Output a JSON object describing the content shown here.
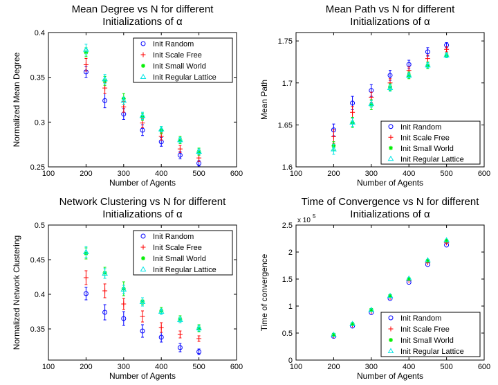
{
  "colors": {
    "random": "#0000ff",
    "scale_free": "#ff0000",
    "small_world": "#00ee00",
    "regular_lattice": "#00e5e5"
  },
  "chart_data": [
    {
      "type": "scatter",
      "title_lines": [
        "Mean Degree vs N for different",
        "Initializations of α"
      ],
      "xlabel": "Number of Agents",
      "ylabel": "Normalized Mean Degree",
      "xlim": [
        100,
        600
      ],
      "ylim": [
        0.25,
        0.4
      ],
      "xticks": [
        "100",
        "200",
        "300",
        "400",
        "500",
        "600"
      ],
      "yticks": [
        "0.25",
        "0.3",
        "0.35",
        "0.4"
      ],
      "legend_position": "top-right",
      "x": [
        200,
        250,
        300,
        350,
        400,
        450,
        500
      ],
      "series": [
        {
          "name": "Init Random",
          "marker": "circle",
          "values": [
            0.356,
            0.324,
            0.309,
            0.291,
            0.278,
            0.263,
            0.254
          ],
          "err": [
            0.006,
            0.008,
            0.006,
            0.006,
            0.005,
            0.004,
            0.003
          ]
        },
        {
          "name": "Init Scale Free",
          "marker": "plus",
          "values": [
            0.364,
            0.338,
            0.317,
            0.299,
            0.284,
            0.27,
            0.26
          ],
          "err": [
            0.007,
            0.006,
            0.006,
            0.005,
            0.004,
            0.004,
            0.004
          ]
        },
        {
          "name": "Init Small World",
          "marker": "star",
          "values": [
            0.378,
            0.346,
            0.326,
            0.306,
            0.291,
            0.28,
            0.267
          ],
          "err": [
            0.005,
            0.005,
            0.006,
            0.004,
            0.004,
            0.004,
            0.004
          ]
        },
        {
          "name": "Init Regular Lattice",
          "marker": "triangle",
          "values": [
            0.381,
            0.348,
            0.324,
            0.307,
            0.292,
            0.28,
            0.267
          ],
          "err": [
            0.006,
            0.005,
            0.004,
            0.004,
            0.003,
            0.003,
            0.003
          ]
        }
      ]
    },
    {
      "type": "scatter",
      "title_lines": [
        "Mean Path vs N for different",
        "Initializations of α"
      ],
      "xlabel": "Number of Agents",
      "ylabel": "Mean Path",
      "xlim": [
        100,
        600
      ],
      "ylim": [
        1.6,
        1.76
      ],
      "xticks": [
        "100",
        "200",
        "300",
        "400",
        "500",
        "600"
      ],
      "yticks": [
        "1.6",
        "1.65",
        "1.7",
        "1.75"
      ],
      "legend_position": "bottom-right",
      "x": [
        200,
        250,
        300,
        350,
        400,
        450,
        500
      ],
      "series": [
        {
          "name": "Init Random",
          "marker": "circle",
          "values": [
            1.644,
            1.676,
            1.691,
            1.709,
            1.722,
            1.737,
            1.745
          ],
          "err": [
            0.007,
            0.008,
            0.007,
            0.006,
            0.005,
            0.005,
            0.003
          ]
        },
        {
          "name": "Init Scale Free",
          "marker": "plus",
          "values": [
            1.636,
            1.665,
            1.683,
            1.7,
            1.715,
            1.729,
            1.74
          ],
          "err": [
            0.008,
            0.007,
            0.006,
            0.005,
            0.004,
            0.004,
            0.003
          ]
        },
        {
          "name": "Init Small World",
          "marker": "star",
          "values": [
            1.625,
            1.653,
            1.674,
            1.695,
            1.709,
            1.721,
            1.733
          ],
          "err": [
            0.005,
            0.006,
            0.006,
            0.004,
            0.004,
            0.004,
            0.003
          ]
        },
        {
          "name": "Init Regular Lattice",
          "marker": "triangle",
          "values": [
            1.621,
            1.653,
            1.675,
            1.694,
            1.709,
            1.721,
            1.733
          ],
          "err": [
            0.006,
            0.005,
            0.004,
            0.004,
            0.003,
            0.003,
            0.003
          ]
        }
      ]
    },
    {
      "type": "scatter",
      "title_lines": [
        "Network Clustering vs N for different",
        "Initializations of α"
      ],
      "xlabel": "Number of Agents",
      "ylabel": "Normalized Network Clustering",
      "xlim": [
        100,
        600
      ],
      "ylim": [
        0.305,
        0.5
      ],
      "xticks": [
        "100",
        "200",
        "300",
        "400",
        "500",
        "600"
      ],
      "yticks": [
        "0.35",
        "0.4",
        "0.45",
        "0.5"
      ],
      "legend_position": "top-right",
      "x": [
        200,
        250,
        300,
        350,
        400,
        450,
        500
      ],
      "series": [
        {
          "name": "Init Random",
          "marker": "circle",
          "values": [
            0.401,
            0.374,
            0.365,
            0.347,
            0.338,
            0.323,
            0.317
          ],
          "err": [
            0.009,
            0.011,
            0.01,
            0.009,
            0.007,
            0.006,
            0.004
          ]
        },
        {
          "name": "Init Scale Free",
          "marker": "plus",
          "values": [
            0.424,
            0.405,
            0.386,
            0.368,
            0.352,
            0.342,
            0.336
          ],
          "err": [
            0.01,
            0.01,
            0.008,
            0.008,
            0.007,
            0.005,
            0.004
          ]
        },
        {
          "name": "Init Small World",
          "marker": "star",
          "values": [
            0.459,
            0.431,
            0.408,
            0.39,
            0.376,
            0.364,
            0.351
          ],
          "err": [
            0.008,
            0.008,
            0.01,
            0.005,
            0.005,
            0.005,
            0.005
          ]
        },
        {
          "name": "Init Regular Lattice",
          "marker": "triangle",
          "values": [
            0.461,
            0.43,
            0.407,
            0.389,
            0.375,
            0.363,
            0.351
          ],
          "err": [
            0.008,
            0.007,
            0.006,
            0.006,
            0.004,
            0.004,
            0.004
          ]
        }
      ]
    },
    {
      "type": "scatter",
      "title_lines": [
        "Time of Convergence vs N for different",
        "Initializations of α"
      ],
      "xlabel": "Number of Agents",
      "ylabel": "Time of convergence",
      "axis_multiplier": "x 10",
      "axis_multiplier_exponent": "5",
      "xlim": [
        100,
        600
      ],
      "ylim": [
        0,
        2.5
      ],
      "xticks": [
        "100",
        "200",
        "300",
        "400",
        "500",
        "600"
      ],
      "yticks": [
        "0",
        "0.5",
        "1",
        "1.5",
        "2",
        "2.5"
      ],
      "legend_position": "bottom-right",
      "x": [
        200,
        250,
        300,
        350,
        400,
        450,
        500
      ],
      "series": [
        {
          "name": "Init Random",
          "marker": "circle",
          "values": [
            0.44,
            0.63,
            0.88,
            1.14,
            1.44,
            1.77,
            2.13
          ]
        },
        {
          "name": "Init Scale Free",
          "marker": "plus",
          "values": [
            0.45,
            0.65,
            0.9,
            1.16,
            1.47,
            1.8,
            2.17
          ]
        },
        {
          "name": "Init Small World",
          "marker": "star",
          "values": [
            0.47,
            0.67,
            0.93,
            1.19,
            1.5,
            1.84,
            2.21
          ]
        },
        {
          "name": "Init Regular Lattice",
          "marker": "triangle",
          "values": [
            0.47,
            0.67,
            0.93,
            1.19,
            1.51,
            1.85,
            2.22
          ]
        }
      ]
    }
  ]
}
